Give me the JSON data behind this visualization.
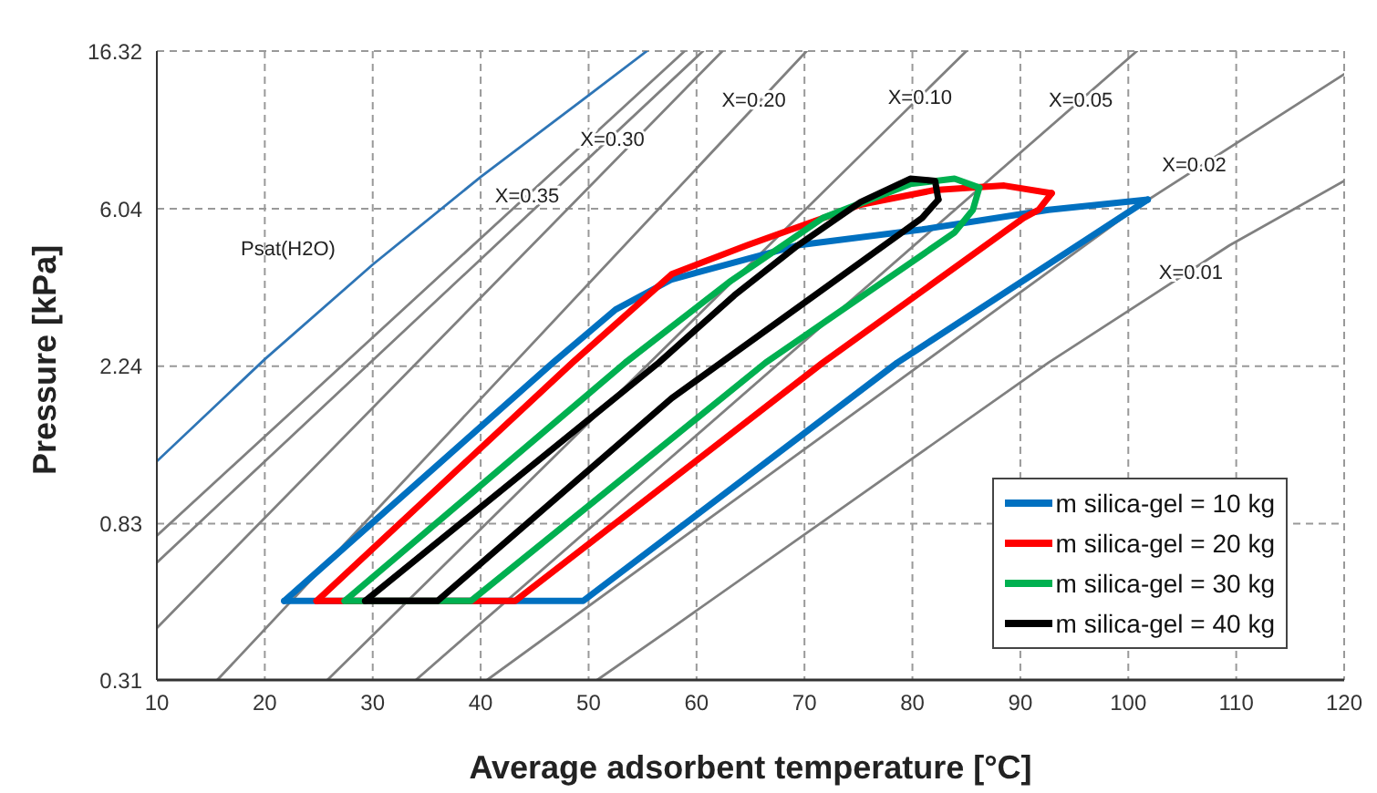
{
  "chart_data": {
    "type": "line",
    "xlabel": "Average adsorbent temperature [°C]",
    "ylabel": "Pressure [kPa]",
    "xlim": [
      10,
      120
    ],
    "xticks": [
      10,
      20,
      30,
      40,
      50,
      60,
      70,
      80,
      90,
      100,
      110,
      120
    ],
    "ylim": [
      0.31,
      16.32
    ],
    "yticks": [
      0.31,
      0.83,
      2.24,
      6.04,
      16.32
    ],
    "log": "y",
    "grid": true,
    "legend": "bottom right",
    "marker": "none",
    "series": [
      {
        "color": "#808080",
        "x": [
          10,
          58.9
        ],
        "values": [
          0.77,
          16.32
        ]
      },
      {
        "color": "#808080",
        "x": [
          10,
          60.6
        ],
        "values": [
          0.65,
          16.32
        ]
      },
      {
        "color": "#808080",
        "x": [
          10,
          62.4
        ],
        "values": [
          0.43,
          16.32
        ]
      },
      {
        "color": "#808080",
        "x": [
          15.6,
          70.2
        ],
        "values": [
          0.31,
          16.32
        ]
      },
      {
        "color": "#808080",
        "x": [
          25.8,
          85
        ],
        "values": [
          0.31,
          16.32
        ]
      },
      {
        "color": "#808080",
        "x": [
          34,
          100.8
        ],
        "values": [
          0.31,
          16.32
        ]
      },
      {
        "color": "#808080",
        "x": [
          40.6,
          101.5,
          120
        ],
        "values": [
          0.31,
          6.3,
          14.1
        ]
      },
      {
        "color": "#808080",
        "x": [
          50.8,
          57.7,
          92.6,
          109.4,
          120
        ],
        "values": [
          0.31,
          0.43,
          2.29,
          4.8,
          7.2
        ]
      },
      {
        "color": "#2e75b6",
        "x": [
          10,
          20,
          30,
          40,
          50,
          55.4
        ],
        "values": [
          1.23,
          2.34,
          4.25,
          7.38,
          12.35,
          16.32
        ]
      },
      {
        "name": "m silica-gel = 10 kg",
        "color": "#0070c0",
        "x": [
          21.8,
          46.7,
          52.5,
          57.7,
          69.4,
          80.9,
          92.6,
          101.8
        ],
        "values": [
          0.51,
          2.29,
          3.2,
          3.87,
          4.8,
          5.3,
          6.0,
          6.4
        ]
      },
      {
        "color": "#0070c0",
        "x": [
          21.8,
          49.5,
          78.6,
          101.8
        ],
        "values": [
          0.51,
          0.51,
          2.29,
          6.4
        ]
      },
      {
        "name": "m silica-gel = 20 kg",
        "color": "#ff0000",
        "x": [
          24.8,
          48.5,
          57.7,
          64.7,
          75.2,
          82.1,
          88.5,
          92.9
        ],
        "values": [
          0.51,
          2.29,
          4.0,
          4.8,
          6.2,
          6.8,
          6.99,
          6.66
        ]
      },
      {
        "color": "#ff0000",
        "x": [
          24.8,
          43.2,
          71.7,
          90.3,
          91.7,
          92.9
        ],
        "values": [
          0.51,
          0.51,
          2.29,
          5.7,
          6.0,
          6.66
        ]
      },
      {
        "name": "m silica-gel = 30 kg",
        "color": "#00b050",
        "x": [
          27.4,
          53.4,
          63,
          71.7,
          79.8,
          83.9,
          86.2
        ],
        "values": [
          0.51,
          2.29,
          3.8,
          5.7,
          7.06,
          7.3,
          6.9
        ]
      },
      {
        "color": "#00b050",
        "x": [
          27.4,
          39.1,
          66.4,
          83.9,
          85.6,
          86.2
        ],
        "values": [
          0.51,
          0.51,
          2.29,
          5.2,
          6.0,
          6.9
        ]
      },
      {
        "name": "m silica-gel = 40 kg",
        "color": "#000000",
        "x": [
          29.3,
          56.5,
          63.5,
          69.4,
          75.2,
          79.8,
          82.1,
          82.4
        ],
        "values": [
          0.51,
          2.29,
          3.5,
          4.8,
          6.3,
          7.3,
          7.2,
          6.4
        ]
      },
      {
        "color": "#000000",
        "x": [
          29.3,
          36.0,
          57.7,
          80.9,
          82.4
        ],
        "values": [
          0.51,
          0.51,
          1.83,
          5.7,
          6.4
        ]
      }
    ],
    "annotations": [
      "Psat(H2O)",
      {
        "text": "X=0.35",
        "x": 44.3,
        "y": 6.57
      },
      {
        "text": "X=0.30",
        "x": 52.2,
        "y": 9.39
      },
      {
        "text": "X=0.20",
        "x": 65.3,
        "y": 12.0
      },
      {
        "text": "X=0.10",
        "x": 80.7,
        "y": 12.2
      },
      {
        "text": "X=0.05",
        "x": 95.6,
        "y": 12.0
      },
      {
        "text": "X=0.02",
        "x": 106.1,
        "y": 8.0
      },
      {
        "text": "X=0.01",
        "x": 105.8,
        "y": 4.06
      }
    ]
  }
}
